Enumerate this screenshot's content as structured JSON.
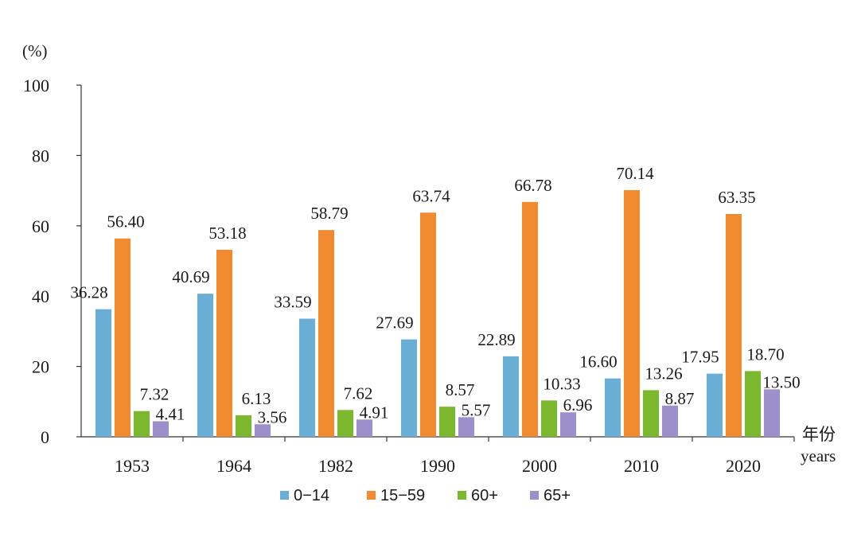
{
  "chart_data": {
    "type": "bar",
    "y_unit": "(%)",
    "x_unit_cn": "年份",
    "x_unit_en": "years",
    "categories": [
      "1953",
      "1964",
      "1982",
      "1990",
      "2000",
      "2010",
      "2020"
    ],
    "ylim": [
      0,
      100
    ],
    "yticks": [
      "0",
      "20",
      "40",
      "60",
      "80",
      "100"
    ],
    "grid": false,
    "legend_position": "bottom-center",
    "series": [
      {
        "name": "0−14",
        "color": "#6aaed6",
        "values": [
          36.28,
          40.69,
          33.59,
          27.69,
          22.89,
          16.6,
          17.95
        ],
        "labels": [
          "36.28",
          "40.69",
          "33.59",
          "27.69",
          "22.89",
          "16.60",
          "17.95"
        ]
      },
      {
        "name": "15−59",
        "color": "#f28a30",
        "values": [
          56.4,
          53.18,
          58.79,
          63.74,
          66.78,
          70.14,
          63.35
        ],
        "labels": [
          "56.40",
          "53.18",
          "58.79",
          "63.74",
          "66.78",
          "70.14",
          "63.35"
        ]
      },
      {
        "name": "60+",
        "color": "#7cb82f",
        "values": [
          7.32,
          6.13,
          7.62,
          8.57,
          10.33,
          13.26,
          18.7
        ],
        "labels": [
          "7.32",
          "6.13",
          "7.62",
          "8.57",
          "10.33",
          "13.26",
          "18.70"
        ]
      },
      {
        "name": "65+",
        "color": "#9b8fcc",
        "values": [
          4.41,
          3.56,
          4.91,
          5.57,
          6.96,
          8.87,
          13.5
        ],
        "labels": [
          "4.41",
          "3.56",
          "4.91",
          "5.57",
          "6.96",
          "8.87",
          "13.50"
        ]
      }
    ]
  }
}
